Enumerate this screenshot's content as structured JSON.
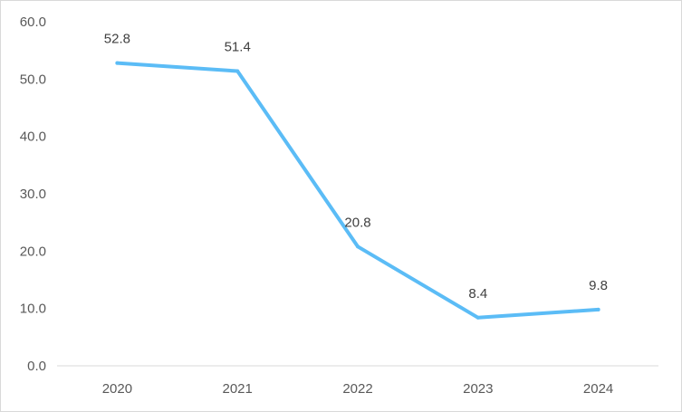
{
  "chart_data": {
    "type": "line",
    "title": "",
    "xlabel": "",
    "ylabel": "",
    "categories": [
      "2020",
      "2021",
      "2022",
      "2023",
      "2024"
    ],
    "series": [
      {
        "values": [
          52.8,
          51.4,
          20.8,
          8.4,
          9.8
        ],
        "color": "#5BBCF6"
      }
    ],
    "data_labels": [
      "52.8",
      "51.4",
      "20.8",
      "8.4",
      "9.8"
    ],
    "ylim": [
      0,
      60
    ],
    "y_ticks": [
      "0.0",
      "10.0",
      "20.0",
      "30.0",
      "40.0",
      "50.0",
      "60.0"
    ],
    "grid": false,
    "legend": "none",
    "axis_color": "#d9d9d9"
  }
}
